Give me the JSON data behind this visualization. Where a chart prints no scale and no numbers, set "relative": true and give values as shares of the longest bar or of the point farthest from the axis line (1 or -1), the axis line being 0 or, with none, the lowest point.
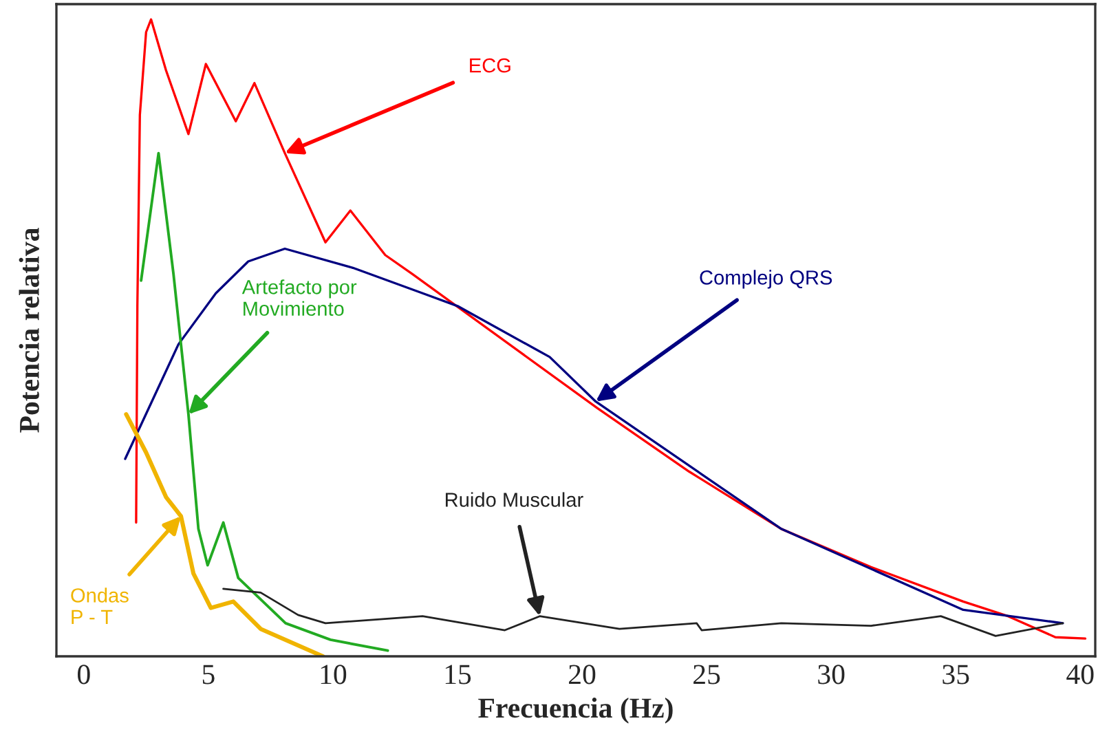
{
  "chart_data": {
    "type": "line",
    "xlabel": "Frecuencia (Hz)",
    "ylabel": "Potencia relativa",
    "relative": true,
    "xlim": [
      -1.1,
      40.6
    ],
    "xticks": [
      0,
      5,
      10,
      15,
      20,
      25,
      30,
      35,
      40
    ],
    "grid": false,
    "legend": false,
    "line_style": "solid",
    "marker": "none",
    "series": [
      {
        "name": "ECG",
        "color": "#ff0000",
        "x": [
          2.1,
          2.15,
          2.25,
          2.5,
          2.7,
          3.3,
          4.2,
          4.9,
          6.1,
          6.85,
          8.07,
          9.7,
          10.7,
          12.1,
          13.2,
          20.6,
          24.3,
          28.0,
          31.6,
          35.3,
          37.1,
          39.0,
          40.2
        ],
        "values": [
          0.21,
          0.55,
          0.85,
          0.98,
          1.0,
          0.92,
          0.82,
          0.93,
          0.84,
          0.9,
          0.79,
          0.65,
          0.7,
          0.63,
          0.6,
          0.39,
          0.29,
          0.2,
          0.14,
          0.086,
          0.063,
          0.03,
          0.028
        ]
      },
      {
        "name": "Complejo QRS",
        "color": "#000080",
        "x": [
          1.66,
          3.8,
          5.3,
          6.6,
          8.07,
          10.8,
          13.6,
          15.0,
          18.7,
          20.55,
          28.0,
          35.3,
          39.3
        ],
        "values": [
          0.31,
          0.49,
          0.57,
          0.62,
          0.64,
          0.61,
          0.57,
          0.55,
          0.47,
          0.4,
          0.2,
          0.073,
          0.052
        ]
      },
      {
        "name": "Artefacto por\nMovimiento",
        "color": "#22aa22",
        "x": [
          2.3,
          3.0,
          3.6,
          4.2,
          4.6,
          4.97,
          5.6,
          6.2,
          8.1,
          9.9,
          12.2
        ],
        "values": [
          0.59,
          0.79,
          0.6,
          0.38,
          0.2,
          0.143,
          0.21,
          0.123,
          0.052,
          0.026,
          0.009
        ]
      },
      {
        "name": "Ruido Muscular",
        "color": "#222222",
        "x": [
          5.6,
          7.1,
          8.6,
          9.7,
          13.6,
          16.9,
          18.3,
          21.5,
          24.6,
          24.8,
          28.0,
          31.6,
          34.4,
          36.6,
          39.3
        ],
        "values": [
          0.106,
          0.1,
          0.065,
          0.052,
          0.063,
          0.041,
          0.063,
          0.043,
          0.052,
          0.041,
          0.052,
          0.048,
          0.063,
          0.032,
          0.052
        ]
      },
      {
        "name": "Ondas\nP - T",
        "color": "#f0b400",
        "x": [
          1.7,
          2.5,
          3.3,
          3.9,
          4.4,
          5.1,
          6.0,
          7.1,
          9.6
        ],
        "values": [
          0.38,
          0.32,
          0.25,
          0.22,
          0.13,
          0.076,
          0.086,
          0.043,
          0.0
        ]
      }
    ]
  }
}
